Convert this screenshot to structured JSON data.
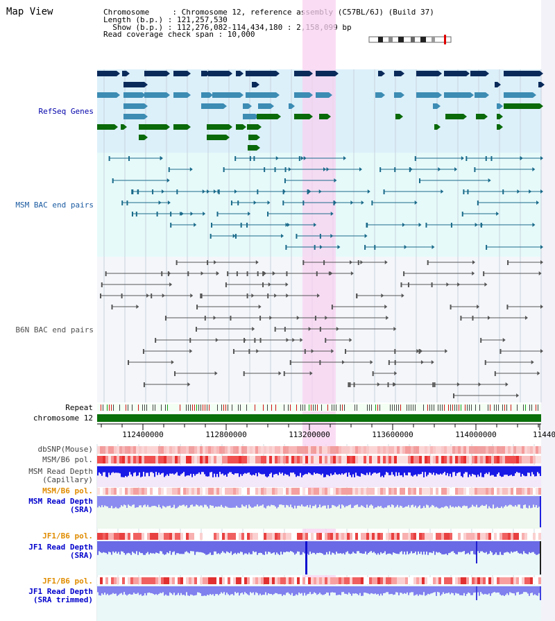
{
  "page": {
    "title": "Map View"
  },
  "info": {
    "line1": "Chromosome     : Chromosome 12, reference assembly (C57BL/6J) (Build 37)",
    "line2": "Length (b.p.) : 121,257,530",
    "line3": "  Show (b.p.) : 112,276,082-114,434,180 : 2,158,099 bp",
    "line4": "Read coverage check span : 10,000"
  },
  "tracks": {
    "refseq": "RefSeq Genes",
    "msm_bac": "MSM BAC end pairs",
    "b6n_bac": "B6N BAC end pairs",
    "repeat": "Repeat",
    "chromosome": "chromosome 12",
    "dbsnp": "dbSNP(Mouse)",
    "msm_b6_pol": "MSM/B6 pol.",
    "msm_depth_cap_1": "MSM Read Depth",
    "msm_depth_cap_2": "(Capillary)",
    "msm_b6_pol2": "MSM/B6 pol.",
    "msm_depth_sra_1": "MSM Read Depth",
    "msm_depth_sra_2": "(SRA)",
    "jf1_b6_pol": "JF1/B6 pol.",
    "jf1_depth_sra_1": "JF1 Read Depth",
    "jf1_depth_sra_2": "(SRA)",
    "jf1_b6_pol2": "JF1/B6 pol.",
    "jf1_depth_trim_1": "JF1 Read Depth",
    "jf1_depth_trim_2": "(SRA trimmed)"
  },
  "ruler": {
    "ticks": [
      "112400000",
      "112800000",
      "113200000",
      "113600000",
      "114000000",
      "11440"
    ]
  },
  "colors": {
    "refseq_bg": "#dcf0fa",
    "msm_bg": "#e6fafa",
    "b6n_bg": "#f4f6fa",
    "highlight": "#f8d2f0",
    "refseq_label": "#0000aa",
    "msm_label": "#1a5aa0",
    "b6n_label": "#505050",
    "orange_label": "#e08c00",
    "blue_label": "#0000cc",
    "gene_dark": "#0a2a5a",
    "gene_mid": "#3c8cb4",
    "gene_green": "#0a6a0a",
    "depth_blue": "#1a1ae6",
    "depth_light": "#8c8cf0"
  }
}
